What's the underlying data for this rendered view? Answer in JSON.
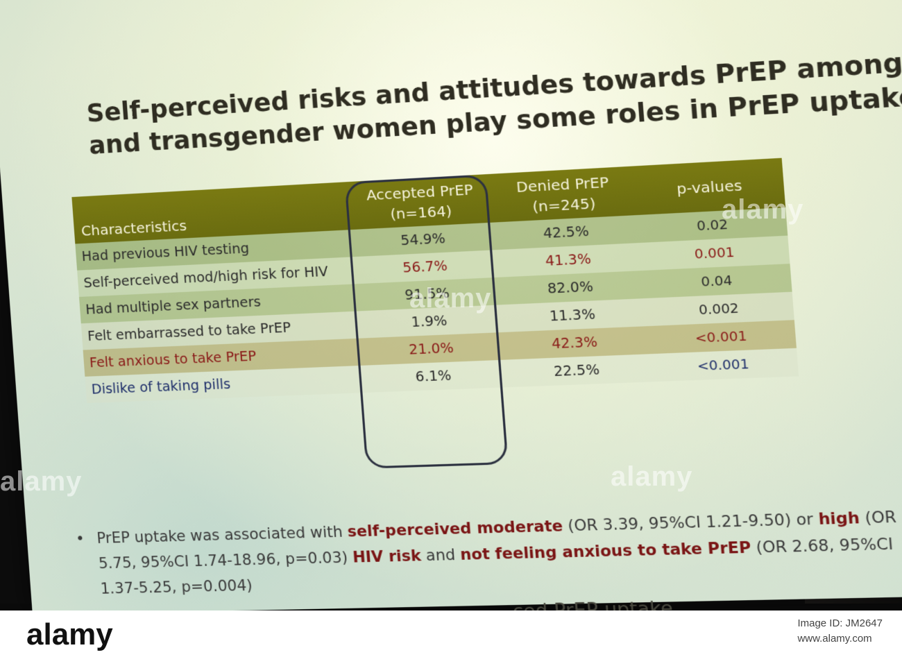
{
  "slide": {
    "title_line1": "Self-perceived risks and attitudes towards PrEP among n",
    "title_line2": "and transgender women play some roles in PrEP uptake",
    "table": {
      "headers": {
        "characteristics": "Characteristics",
        "accepted": "Accepted PrEP",
        "accepted_n": "(n=164)",
        "denied": "Denied PrEP",
        "denied_n": "(n=245)",
        "pvalues": "p-values"
      },
      "rows": [
        {
          "label": "Had previous HIV testing",
          "accepted": "54.9%",
          "denied": "42.5%",
          "p": "0.02"
        },
        {
          "label": "Self-perceived mod/high risk for HIV",
          "accepted": "56.7%",
          "denied": "41.3%",
          "p": "0.001"
        },
        {
          "label": "Had multiple sex partners",
          "accepted": "91.5%",
          "denied": "82.0%",
          "p": "0.04"
        },
        {
          "label": "Felt embarrassed to take PrEP",
          "accepted": "1.9%",
          "denied": "11.3%",
          "p": "0.002"
        },
        {
          "label": "Felt anxious to take PrEP",
          "accepted": "21.0%",
          "denied": "42.3%",
          "p": "<0.001"
        },
        {
          "label": "Dislike of taking pills",
          "accepted": "6.1%",
          "denied": "22.5%",
          "p": "<0.001"
        }
      ]
    },
    "bullet": {
      "part1": "PrEP uptake was associated with ",
      "emph1": "self-perceived moderate",
      "part2": " (OR 3.39, 95%CI 1.21-9.50) or ",
      "emph2": "high",
      "part3": " (OR 5.75, 95%CI 1.74-18.96, p=0.03) ",
      "emph3": "HIV risk",
      "part4": " and ",
      "emph4": "not feeling anxious to take PrEP",
      "part5": " (OR 2.68, 95%CI 1.37-5.25, p=0.004)"
    },
    "cutoff_text": "...ced PrEP uptake"
  },
  "watermark_text": "alamy",
  "footer": {
    "logo": "alamy",
    "image_id_line": "Image ID: JM2647",
    "site": "www.alamy.com"
  }
}
